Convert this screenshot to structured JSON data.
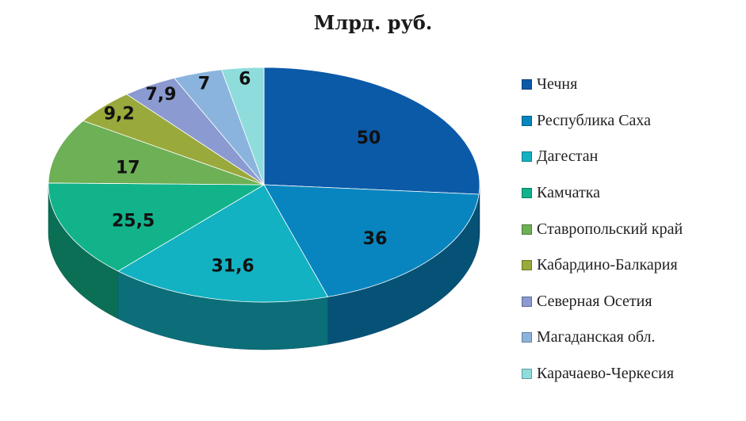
{
  "chart_data": {
    "type": "pie",
    "title": "Млрд. руб.",
    "categories": [
      "Чечня",
      "Республика Саха",
      "Дагестан",
      "Камчатка",
      "Ставропольский край",
      "Кабардино-Балкария",
      "Северная Осетия",
      "Магаданская обл.",
      "Карачаево-Черкесия"
    ],
    "values": [
      50,
      36,
      31.6,
      25.5,
      17,
      9.2,
      7.9,
      7,
      6
    ],
    "labels": [
      "50",
      "36",
      "31,6",
      "25,5",
      "17",
      "9,2",
      "7,9",
      "7",
      "6"
    ],
    "colors": [
      "#0b5aa8",
      "#0885bf",
      "#12b2c2",
      "#12b38b",
      "#6db056",
      "#9aa93b",
      "#8b9ad0",
      "#8ab4dd",
      "#8fdcdc"
    ],
    "legend_position": "right",
    "style": "3d"
  }
}
